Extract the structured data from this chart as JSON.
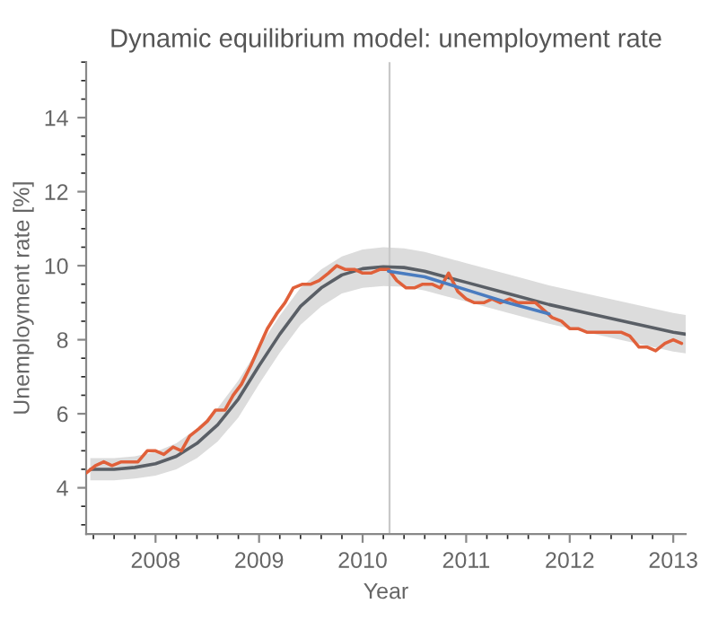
{
  "chart_data": {
    "type": "line",
    "title": "Dynamic equilibrium model: unemployment rate",
    "xlabel": "Year",
    "ylabel": "Unemployment rate [%]",
    "xlim": [
      2007.33,
      2013.12
    ],
    "xticks": [
      2008,
      2009,
      2010,
      2011,
      2012,
      2013
    ],
    "ylim": [
      2.75,
      15.5
    ],
    "yticks": [
      4,
      6,
      8,
      10,
      12,
      14
    ],
    "grid": false,
    "legend": false,
    "ref_lines": [
      {
        "axis": "x",
        "value": 2010.26,
        "color": "#c8c8c8"
      }
    ],
    "series": [
      {
        "color": "#5a5f66",
        "x": [
          2007.37,
          2007.6,
          2007.8,
          2008.0,
          2008.2,
          2008.4,
          2008.6,
          2008.8,
          2009.0,
          2009.2,
          2009.4,
          2009.6,
          2009.8,
          2010.0,
          2010.2,
          2010.4,
          2010.6,
          2010.8,
          2011.0,
          2011.4,
          2011.8,
          2012.2,
          2012.6,
          2013.0,
          2013.12
        ],
        "values": [
          4.5,
          4.5,
          4.55,
          4.65,
          4.85,
          5.2,
          5.7,
          6.4,
          7.3,
          8.15,
          8.9,
          9.4,
          9.75,
          9.92,
          9.97,
          9.95,
          9.85,
          9.7,
          9.55,
          9.25,
          8.95,
          8.7,
          8.45,
          8.2,
          8.15
        ],
        "lower": [
          4.2,
          4.2,
          4.25,
          4.33,
          4.5,
          4.8,
          5.25,
          5.9,
          6.8,
          7.65,
          8.4,
          8.9,
          9.25,
          9.4,
          9.45,
          9.43,
          9.33,
          9.18,
          9.03,
          8.73,
          8.43,
          8.18,
          7.93,
          7.68,
          7.63
        ],
        "upper": [
          4.8,
          4.8,
          4.85,
          4.97,
          5.2,
          5.6,
          6.15,
          6.9,
          7.8,
          8.65,
          9.4,
          9.9,
          10.25,
          10.44,
          10.5,
          10.47,
          10.37,
          10.22,
          10.07,
          9.77,
          9.47,
          9.22,
          8.97,
          8.72,
          8.67
        ]
      },
      {
        "color": "#e0603a",
        "x": [
          2007.33,
          2007.42,
          2007.5,
          2007.58,
          2007.67,
          2007.75,
          2007.83,
          2007.92,
          2008.0,
          2008.08,
          2008.17,
          2008.25,
          2008.33,
          2008.42,
          2008.5,
          2008.58,
          2008.67,
          2008.75,
          2008.83,
          2008.92,
          2009.0,
          2009.08,
          2009.17,
          2009.25,
          2009.33,
          2009.42,
          2009.5,
          2009.58,
          2009.67,
          2009.75,
          2009.83,
          2009.92,
          2010.0,
          2010.08,
          2010.17,
          2010.25,
          2010.33,
          2010.42,
          2010.5,
          2010.58,
          2010.67,
          2010.75,
          2010.83,
          2010.92,
          2011.0,
          2011.08,
          2011.17,
          2011.25,
          2011.33,
          2011.42,
          2011.5,
          2011.58,
          2011.67,
          2011.75,
          2011.83,
          2011.92,
          2012.0,
          2012.08,
          2012.17,
          2012.25,
          2012.33,
          2012.42,
          2012.5,
          2012.58,
          2012.67,
          2012.75,
          2012.83,
          2012.92,
          2013.0,
          2013.08
        ],
        "values": [
          4.4,
          4.6,
          4.7,
          4.6,
          4.7,
          4.7,
          4.7,
          5.0,
          5.0,
          4.9,
          5.1,
          5.0,
          5.4,
          5.6,
          5.8,
          6.1,
          6.1,
          6.5,
          6.8,
          7.3,
          7.8,
          8.3,
          8.7,
          9.0,
          9.4,
          9.5,
          9.5,
          9.6,
          9.8,
          10.0,
          9.9,
          9.9,
          9.8,
          9.8,
          9.9,
          9.9,
          9.6,
          9.4,
          9.4,
          9.5,
          9.5,
          9.4,
          9.8,
          9.3,
          9.1,
          9.0,
          9.0,
          9.1,
          9.0,
          9.1,
          9.0,
          9.0,
          9.0,
          8.8,
          8.6,
          8.5,
          8.3,
          8.3,
          8.2,
          8.2,
          8.2,
          8.2,
          8.2,
          8.1,
          7.8,
          7.8,
          7.7,
          7.9,
          8.0,
          7.9
        ]
      },
      {
        "color": "#4a7cc0",
        "x": [
          2010.25,
          2010.6,
          2011.0,
          2011.4,
          2011.8
        ],
        "values": [
          9.85,
          9.7,
          9.35,
          9.0,
          8.7
        ]
      }
    ]
  }
}
